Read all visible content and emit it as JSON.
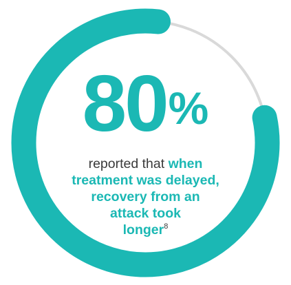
{
  "colors": {
    "accent": "#1BB8B4",
    "track": "#D9D9D9",
    "text": "#3A3A3A"
  },
  "chart_data": {
    "type": "donut-progress",
    "value": 80,
    "max": 100,
    "unit": "%"
  },
  "stat": {
    "number": "80",
    "percent_sign": "%"
  },
  "description": {
    "prefix": "reported that ",
    "line1_bold": "when",
    "line2_bold": "treatment was delayed,",
    "line3_bold": "recovery from an",
    "line4_bold": "attack took",
    "line5_bold": "longer",
    "reference": "8"
  }
}
